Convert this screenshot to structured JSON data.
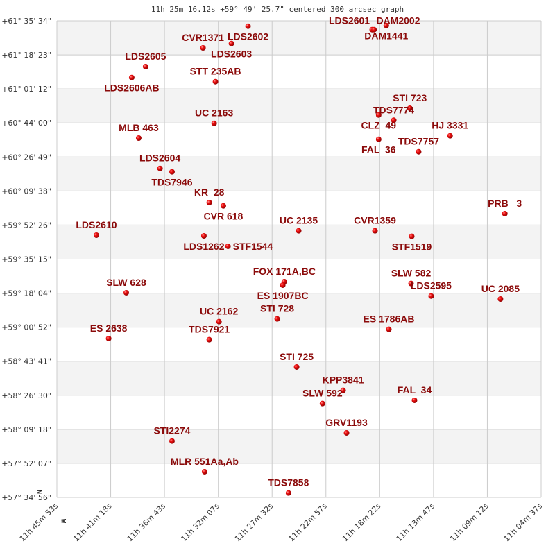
{
  "chart_data": {
    "type": "scatter",
    "title": "11h 25m 16.12s +59° 49’ 25.7\" centered 300 arcsec graph",
    "xlabel": "",
    "ylabel": "",
    "x_unit": "RA (hours)",
    "y_unit": "Dec (degrees)",
    "xlim": [
      11.764722,
      11.076944
    ],
    "ylim": [
      57.582222,
      61.592778
    ],
    "x_reversed": true,
    "grid": true,
    "banded_rows": true,
    "x_ticks": [
      "11h 45m 53s",
      "11h 41m 18s",
      "11h 36m 43s",
      "11h 32m 07s",
      "11h 27m 32s",
      "11h 22m 57s",
      "11h 18m 22s",
      "11h 13m 47s",
      "11h 09m 12s",
      "11h 04m 37s"
    ],
    "y_ticks": [
      "+61° 35' 34\"",
      "+61° 18' 23\"",
      "+61° 01' 12\"",
      "+60° 44' 00\"",
      "+60° 26' 49\"",
      "+60° 09' 38\"",
      "+59° 52' 26\"",
      "+59° 35' 15\"",
      "+59° 18' 04\"",
      "+59° 00' 52\"",
      "+58° 43' 41\"",
      "+58° 26' 30\"",
      "+58° 09' 18\"",
      "+57° 52' 07\"",
      "+57° 34' 56\""
    ],
    "compass": {
      "north": "N",
      "west": "W"
    },
    "colors": {
      "point": "#e00000",
      "label": "#8b0a0a",
      "band": "#f3f3f3",
      "grid": "#cccccc"
    },
    "points": [
      {
        "name": "LDS2602",
        "ra": 11.4932,
        "dec": 61.5478
      },
      {
        "name": "LDS2603",
        "ra": 11.5168,
        "dec": 61.4019
      },
      {
        "name": "CVR1371",
        "ra": 11.5572,
        "dec": 61.3651
      },
      {
        "name": "LDS2605",
        "ra": 11.6387,
        "dec": 61.2075
      },
      {
        "name": "LDS2606AB",
        "ra": 11.6584,
        "dec": 61.1159
      },
      {
        "name": "STT 235AB",
        "ra": 11.5395,
        "dec": 61.0808
      },
      {
        "name": "UC 2163",
        "ra": 11.5414,
        "dec": 60.7306
      },
      {
        "name": "MLB 463",
        "ra": 11.6485,
        "dec": 60.6062
      },
      {
        "name": "LDS2604",
        "ra": 11.6183,
        "dec": 60.3511
      },
      {
        "name": "TDS7946",
        "ra": 11.6012,
        "dec": 60.322
      },
      {
        "name": "DAM1441",
        "ra": 11.2969,
        "dec": 61.5537
      },
      {
        "name": "DAM2002",
        "ra": 11.3169,
        "dec": 61.5186
      },
      {
        "name": "LDS2601",
        "ra": 11.3143,
        "dec": 61.5186
      },
      {
        "name": "STI 723",
        "ra": 11.2634,
        "dec": 60.8572
      },
      {
        "name": "CLZ  49",
        "ra": 11.3077,
        "dec": 60.8006
      },
      {
        "name": "TDS7774",
        "ra": 11.2863,
        "dec": 60.7563
      },
      {
        "name": "FAL  36",
        "ra": 11.3077,
        "dec": 60.5963
      },
      {
        "name": "HJ 3331",
        "ra": 11.2063,
        "dec": 60.6255
      },
      {
        "name": "TDS7757",
        "ra": 11.2509,
        "dec": 60.4912
      },
      {
        "name": "KR  28",
        "ra": 11.5483,
        "dec": 60.0633
      },
      {
        "name": "CVR 618",
        "ra": 11.5283,
        "dec": 60.0359
      },
      {
        "name": "LDS2610",
        "ra": 11.7086,
        "dec": 59.789
      },
      {
        "name": "LDS1262",
        "ra": 11.5559,
        "dec": 59.7831
      },
      {
        "name": "STF1544",
        "ra": 11.5217,
        "dec": 59.6956
      },
      {
        "name": "UC 2135",
        "ra": 11.4213,
        "dec": 59.8258
      },
      {
        "name": "FOX 171A,BC",
        "ra": 11.4417,
        "dec": 59.3979
      },
      {
        "name": "ES 1907BC",
        "ra": 11.4439,
        "dec": 59.3687
      },
      {
        "name": "SLW 628",
        "ra": 11.6662,
        "dec": 59.3045
      },
      {
        "name": "UC 2162",
        "ra": 11.5345,
        "dec": 59.0611
      },
      {
        "name": "STI 728",
        "ra": 11.4518,
        "dec": 59.0844
      },
      {
        "name": "ES 2638",
        "ra": 11.6912,
        "dec": 58.9192
      },
      {
        "name": "TDS7921",
        "ra": 11.5483,
        "dec": 58.9093
      },
      {
        "name": "PRB   3",
        "ra": 11.1285,
        "dec": 59.9699
      },
      {
        "name": "CVR1359",
        "ra": 11.3129,
        "dec": 59.8258
      },
      {
        "name": "STF1519",
        "ra": 11.2607,
        "dec": 59.7791
      },
      {
        "name": "SLW 582",
        "ra": 11.2617,
        "dec": 59.3821
      },
      {
        "name": "LDS2595",
        "ra": 11.2332,
        "dec": 59.277
      },
      {
        "name": "UC 2085",
        "ra": 11.1347,
        "dec": 59.2519
      },
      {
        "name": "ES 1786AB",
        "ra": 11.2932,
        "dec": 58.9968
      },
      {
        "name": "STI 725",
        "ra": 11.4242,
        "dec": 58.6799
      },
      {
        "name": "KPP3841",
        "ra": 11.3582,
        "dec": 58.4831
      },
      {
        "name": "SLW 592",
        "ra": 11.3875,
        "dec": 58.3722
      },
      {
        "name": "FAL  34",
        "ra": 11.2568,
        "dec": 58.3997
      },
      {
        "name": "GRV1193",
        "ra": 11.3533,
        "dec": 58.1253
      },
      {
        "name": "STI2274",
        "ra": 11.6012,
        "dec": 58.057
      },
      {
        "name": "MLR 551Aa,Ab",
        "ra": 11.5549,
        "dec": 57.7984
      },
      {
        "name": "TDS7858",
        "ra": 11.4358,
        "dec": 57.6192
      }
    ]
  }
}
